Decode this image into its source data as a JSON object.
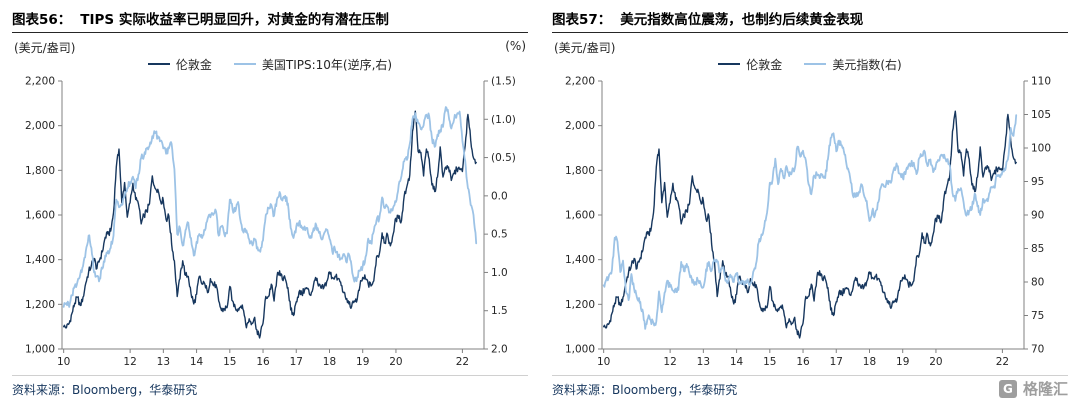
{
  "colors": {
    "gold_line": "#17375E",
    "secondary_line": "#9DC3E6",
    "source_text": "#17375E"
  },
  "logo": {
    "text": "格隆汇",
    "icon": "gelonghui-grid-icon"
  },
  "chart_data": [
    {
      "type": "line",
      "fig_label": "图表56：",
      "title": "TIPS 实际收益率已明显回升，对黄金的有潜在压制",
      "left_axis_unit": "(美元/盎司)",
      "right_axis_unit": "(%)",
      "source": "资料来源：Bloomberg，华泰研究",
      "legend": [
        {
          "name": "伦敦金",
          "color": "#17375E"
        },
        {
          "name": "美国TIPS:10年(逆序,右)",
          "color": "#9DC3E6"
        }
      ],
      "x_range": [
        2009.95,
        2022.65
      ],
      "x_ticks": [
        "10",
        "12",
        "13",
        "14",
        "15",
        "16",
        "17",
        "18",
        "19",
        "20",
        "22"
      ],
      "x_tick_years": [
        2010,
        2012,
        2013,
        2014,
        2015,
        2016,
        2017,
        2018,
        2019,
        2020,
        2022
      ],
      "left_axis": {
        "min": 1000,
        "max": 2200,
        "inverted": false,
        "tick_values": [
          1000,
          1200,
          1400,
          1600,
          1800,
          2000,
          2200
        ],
        "tick_labels": [
          "1,000",
          "1,200",
          "1,400",
          "1,600",
          "1,800",
          "2,000",
          "2,200"
        ]
      },
      "right_axis": {
        "min": -1.5,
        "max": 2.0,
        "inverted": true,
        "tick_values": [
          -1.5,
          -1.0,
          -0.5,
          0.0,
          0.5,
          1.0,
          1.5,
          2.0
        ],
        "tick_labels": [
          "(1.5)",
          "(1.0)",
          "(0.5)",
          "0.0",
          "0.5",
          "1.0",
          "1.5",
          "2.0"
        ]
      },
      "series": [
        {
          "name": "伦敦金",
          "axis": "left",
          "color": "#17375E",
          "width": 1.4,
          "x_start": 2010.0,
          "x_step": 0.08333,
          "values": [
            1100,
            1095,
            1115,
            1160,
            1205,
            1232,
            1195,
            1232,
            1295,
            1345,
            1375,
            1405,
            1360,
            1400,
            1435,
            1500,
            1515,
            1528,
            1610,
            1815,
            1895,
            1655,
            1745,
            1590,
            1655,
            1742,
            1670,
            1650,
            1560,
            1600,
            1615,
            1650,
            1775,
            1720,
            1715,
            1662,
            1665,
            1580,
            1595,
            1470,
            1395,
            1235,
            1315,
            1395,
            1330,
            1325,
            1250,
            1202,
            1245,
            1325,
            1290,
            1290,
            1252,
            1315,
            1285,
            1288,
            1215,
            1172,
            1180,
            1185,
            1280,
            1215,
            1185,
            1180,
            1192,
            1172,
            1095,
            1135,
            1115,
            1142,
            1065,
            1062,
            1115,
            1235,
            1235,
            1290,
            1215,
            1322,
            1350,
            1310,
            1315,
            1275,
            1175,
            1150,
            1212,
            1255,
            1245,
            1265,
            1270,
            1242,
            1270,
            1320,
            1282,
            1272,
            1275,
            1302,
            1345,
            1320,
            1325,
            1315,
            1300,
            1252,
            1222,
            1202,
            1190,
            1215,
            1222,
            1282,
            1320,
            1315,
            1292,
            1282,
            1305,
            1412,
            1425,
            1520,
            1475,
            1512,
            1462,
            1515,
            1585,
            1585,
            1575,
            1685,
            1730,
            1780,
            1975,
            2065,
            1885,
            1880,
            1775,
            1895,
            1850,
            1735,
            1705,
            1770,
            1905,
            1770,
            1815,
            1815,
            1755,
            1785,
            1805,
            1805,
            1795,
            1910,
            2050,
            1935,
            1855,
            1835
          ]
        },
        {
          "name": "美国TIPS:10年(逆序,右)",
          "axis": "right",
          "color": "#9DC3E6",
          "width": 1.8,
          "x_start": 2010.0,
          "x_step": 0.08333,
          "values": [
            1.45,
            1.4,
            1.45,
            1.3,
            1.18,
            1.12,
            1.02,
            0.92,
            0.72,
            0.52,
            0.68,
            1.0,
            1.05,
            1.08,
            0.95,
            0.78,
            0.72,
            0.68,
            0.52,
            0.05,
            0.15,
            0.12,
            0.0,
            -0.1,
            -0.18,
            -0.25,
            -0.1,
            -0.28,
            -0.5,
            -0.52,
            -0.62,
            -0.65,
            -0.78,
            -0.82,
            -0.78,
            -0.72,
            -0.62,
            -0.55,
            -0.62,
            -0.68,
            -0.35,
            0.5,
            0.42,
            0.65,
            0.45,
            0.35,
            0.55,
            0.78,
            0.6,
            0.5,
            0.55,
            0.45,
            0.3,
            0.28,
            0.25,
            0.2,
            0.52,
            0.4,
            0.5,
            0.49,
            0.05,
            0.18,
            0.2,
            0.08,
            0.35,
            0.48,
            0.45,
            0.57,
            0.62,
            0.57,
            0.67,
            0.73,
            0.58,
            0.25,
            0.16,
            0.12,
            0.26,
            0.05,
            -0.05,
            0.06,
            0.0,
            0.1,
            0.42,
            0.55,
            0.4,
            0.35,
            0.42,
            0.4,
            0.42,
            0.55,
            0.47,
            0.36,
            0.46,
            0.56,
            0.5,
            0.44,
            0.56,
            0.72,
            0.7,
            0.8,
            0.82,
            0.76,
            0.86,
            0.76,
            0.92,
            1.12,
            1.06,
            0.98,
            0.92,
            0.8,
            0.56,
            0.62,
            0.46,
            0.32,
            0.3,
            0.02,
            0.16,
            0.14,
            0.22,
            0.15,
            0.08,
            -0.14,
            -0.26,
            -0.45,
            -0.47,
            -0.68,
            -1.0,
            -1.08,
            -0.95,
            -0.87,
            -0.92,
            -1.06,
            -1.04,
            -0.76,
            -0.64,
            -0.8,
            -0.86,
            -0.9,
            -1.16,
            -1.06,
            -0.88,
            -1.0,
            -1.06,
            -1.1,
            -0.72,
            -0.46,
            -0.1,
            0.12,
            0.25,
            0.62
          ]
        }
      ]
    },
    {
      "type": "line",
      "fig_label": "图表57：",
      "title": "美元指数高位震荡，也制约后续黄金表现",
      "left_axis_unit": "(美元/盎司)",
      "right_axis_unit": "",
      "source": "资料来源：Bloomberg，华泰研究",
      "legend": [
        {
          "name": "伦敦金",
          "color": "#17375E"
        },
        {
          "name": "美元指数(右)",
          "color": "#9DC3E6"
        }
      ],
      "x_range": [
        2009.95,
        2022.65
      ],
      "x_ticks": [
        "10",
        "12",
        "13",
        "14",
        "15",
        "16",
        "17",
        "18",
        "19",
        "20",
        "22"
      ],
      "x_tick_years": [
        2010,
        2012,
        2013,
        2014,
        2015,
        2016,
        2017,
        2018,
        2019,
        2020,
        2022
      ],
      "left_axis": {
        "min": 1000,
        "max": 2200,
        "inverted": false,
        "tick_values": [
          1000,
          1200,
          1400,
          1600,
          1800,
          2000,
          2200
        ],
        "tick_labels": [
          "1,000",
          "1,200",
          "1,400",
          "1,600",
          "1,800",
          "2,000",
          "2,200"
        ]
      },
      "right_axis": {
        "min": 70,
        "max": 110,
        "inverted": false,
        "tick_values": [
          70,
          75,
          80,
          85,
          90,
          95,
          100,
          105,
          110
        ],
        "tick_labels": [
          "70",
          "75",
          "80",
          "85",
          "90",
          "95",
          "100",
          "105",
          "110"
        ]
      },
      "series": [
        {
          "name": "伦敦金",
          "axis": "left",
          "color": "#17375E",
          "width": 1.4,
          "x_start": 2010.0,
          "x_step": 0.08333,
          "values": [
            1100,
            1095,
            1115,
            1160,
            1205,
            1232,
            1195,
            1232,
            1295,
            1345,
            1375,
            1405,
            1360,
            1400,
            1435,
            1500,
            1515,
            1528,
            1610,
            1815,
            1895,
            1655,
            1745,
            1590,
            1655,
            1742,
            1670,
            1650,
            1560,
            1600,
            1615,
            1650,
            1775,
            1720,
            1715,
            1662,
            1665,
            1580,
            1595,
            1470,
            1395,
            1235,
            1315,
            1395,
            1330,
            1325,
            1250,
            1202,
            1245,
            1325,
            1290,
            1290,
            1252,
            1315,
            1285,
            1288,
            1215,
            1172,
            1180,
            1185,
            1280,
            1215,
            1185,
            1180,
            1192,
            1172,
            1095,
            1135,
            1115,
            1142,
            1065,
            1062,
            1115,
            1235,
            1235,
            1290,
            1215,
            1322,
            1350,
            1310,
            1315,
            1275,
            1175,
            1150,
            1212,
            1255,
            1245,
            1265,
            1270,
            1242,
            1270,
            1320,
            1282,
            1272,
            1275,
            1302,
            1345,
            1320,
            1325,
            1315,
            1300,
            1252,
            1222,
            1202,
            1190,
            1215,
            1222,
            1282,
            1320,
            1315,
            1292,
            1282,
            1305,
            1412,
            1425,
            1520,
            1475,
            1512,
            1462,
            1515,
            1585,
            1585,
            1575,
            1685,
            1730,
            1780,
            1975,
            2065,
            1885,
            1880,
            1775,
            1895,
            1850,
            1735,
            1705,
            1770,
            1905,
            1770,
            1815,
            1815,
            1755,
            1785,
            1805,
            1805,
            1795,
            1910,
            2050,
            1935,
            1855,
            1835
          ]
        },
        {
          "name": "美元指数(右)",
          "axis": "right",
          "color": "#9DC3E6",
          "width": 1.8,
          "x_start": 2010.0,
          "x_step": 0.08333,
          "values": [
            79.5,
            80.4,
            81.1,
            81.9,
            86.6,
            86.0,
            81.5,
            83.2,
            78.7,
            77.3,
            81.2,
            79.0,
            77.7,
            76.9,
            75.9,
            73.0,
            74.6,
            74.3,
            73.9,
            74.1,
            78.6,
            75.5,
            78.4,
            80.2,
            79.3,
            78.7,
            79.0,
            78.8,
            83.0,
            81.6,
            82.7,
            81.2,
            79.9,
            80.0,
            80.2,
            79.8,
            79.2,
            81.9,
            83.0,
            81.7,
            83.4,
            83.1,
            81.5,
            82.1,
            80.2,
            80.2,
            80.7,
            80.0,
            81.3,
            79.7,
            80.2,
            79.8,
            80.4,
            79.8,
            81.5,
            82.7,
            85.9,
            87.1,
            88.3,
            90.3,
            94.8,
            95.3,
            98.4,
            94.6,
            96.9,
            95.5,
            97.3,
            95.8,
            96.4,
            96.9,
            100.2,
            98.7,
            99.6,
            98.2,
            94.6,
            93.1,
            95.9,
            96.1,
            95.5,
            96.0,
            95.5,
            98.3,
            101.5,
            102.2,
            99.5,
            101.1,
            100.4,
            99.0,
            96.9,
            95.6,
            92.9,
            92.7,
            93.1,
            94.6,
            93.0,
            92.1,
            89.1,
            90.6,
            90.0,
            91.8,
            94.0,
            94.5,
            94.6,
            95.1,
            95.1,
            97.1,
            97.3,
            96.2,
            95.6,
            96.1,
            97.3,
            97.5,
            97.8,
            96.1,
            98.5,
            98.9,
            99.4,
            97.3,
            98.3,
            96.4,
            97.4,
            98.1,
            99.0,
            99.0,
            98.3,
            97.4,
            93.3,
            92.1,
            93.9,
            94.0,
            91.9,
            89.9,
            90.6,
            90.9,
            93.2,
            91.3,
            90.0,
            92.4,
            92.2,
            92.6,
            94.2,
            94.1,
            96.0,
            95.7,
            96.5,
            96.7,
            98.3,
            103.0,
            101.8,
            104.9
          ]
        }
      ]
    }
  ]
}
